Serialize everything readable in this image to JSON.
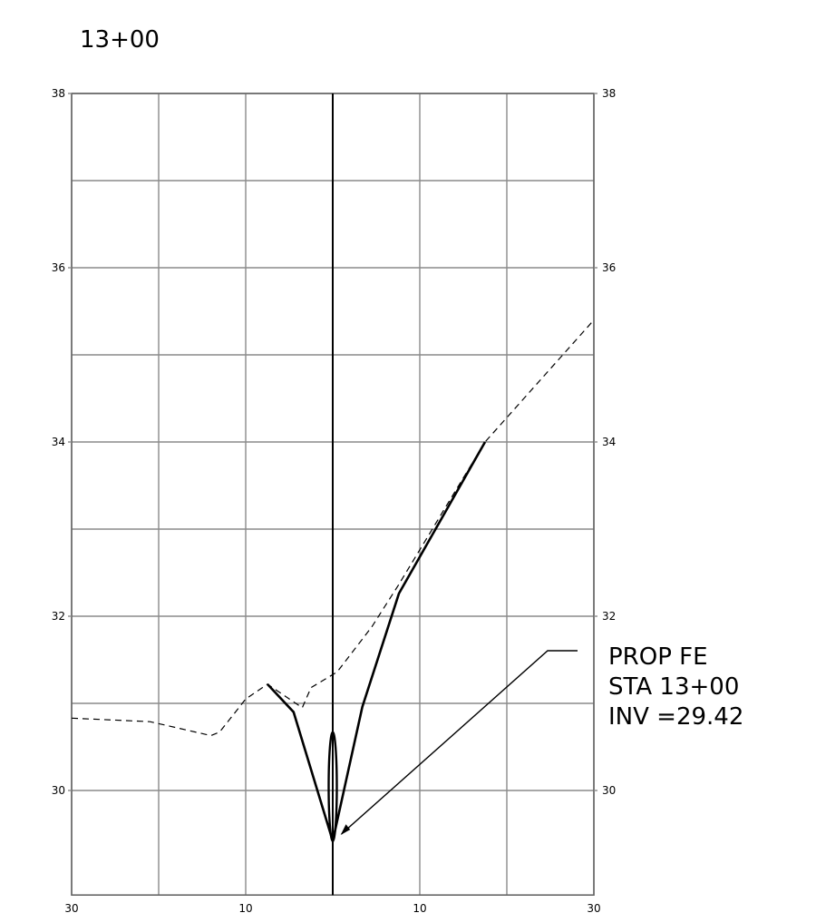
{
  "title": "13+00",
  "left_ticks": [
    "38",
    "36",
    "34",
    "32",
    "30"
  ],
  "right_ticks": [
    "38",
    "36",
    "34",
    "32",
    "30"
  ],
  "bottom_ticks": [
    "30",
    "10",
    "10",
    "30"
  ],
  "note": {
    "line1": "PROP FE",
    "line2": "STA 13+00",
    "line3": "INV =29.42"
  },
  "chart_data": {
    "type": "line",
    "xlim": [
      -30,
      30
    ],
    "ylim": [
      28.8,
      38
    ],
    "grid": true,
    "x_tick_values": [
      -30,
      -10,
      10,
      30
    ],
    "y_tick_values": [
      38,
      36,
      34,
      32,
      30
    ],
    "series": [
      {
        "style": "dashed",
        "x": [
          -30,
          -21,
          -14,
          -13,
          -10,
          -7.5,
          -3.5,
          -2.5,
          0.5,
          4.5,
          7.5,
          17.5,
          30
        ],
        "y": [
          30.83,
          30.79,
          30.63,
          30.67,
          31.05,
          31.22,
          30.95,
          31.18,
          31.36,
          31.88,
          32.35,
          34.0,
          35.4
        ]
      },
      {
        "style": "solid",
        "x": [
          -7.5,
          -4.5,
          0,
          3.4,
          7.6,
          17.5
        ],
        "y": [
          31.22,
          30.9,
          29.42,
          30.96,
          32.26,
          34.0
        ]
      }
    ],
    "pipe": {
      "x": 0,
      "y_bottom": 29.42,
      "y_top": 30.67
    },
    "annotation": {
      "text": [
        "PROP FE",
        "STA 13+00",
        "INV =29.42"
      ],
      "target": [
        1.0,
        29.5
      ]
    }
  }
}
